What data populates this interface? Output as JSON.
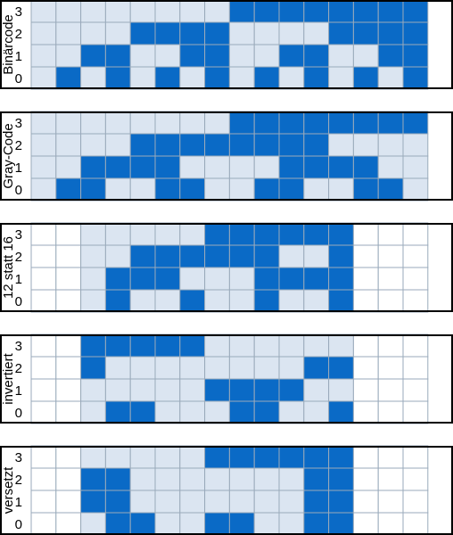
{
  "colors": {
    "on": "#0a6ac6",
    "off": "#dbe5f1",
    "empty": "#ffffff",
    "grid": "#9aaabb"
  },
  "panels": [
    {
      "title": "Binärcode",
      "row_labels": [
        "3",
        "2",
        "1",
        "0"
      ],
      "cells": [
        "1111111100000000",
        "1111000011110000",
        "1100110011001100",
        "1010101010101010"
      ]
    },
    {
      "title": "Gray-Code",
      "row_labels": [
        "3",
        "2",
        "1",
        "0"
      ],
      "cells": [
        "1111111100000000",
        "1111000000001111",
        "1100001111000011",
        "1001100110011001"
      ]
    },
    {
      "title": "12 statt 16",
      "row_labels": [
        "3",
        "2",
        "1",
        "0"
      ],
      "cells": [
        "EEE111110000EEEE",
        "EEE1000000111EEEE",
        "EEE00111100111EEE",
        "EEE011001100111EE"
      ]
    },
    {
      "title": "invertiert",
      "row_labels": [
        "3",
        "2",
        "1",
        "0"
      ],
      "cells": [
        "EEE0000011111EEE",
        "EEE001111110011EEE",
        "EEE111100001111EEE",
        "EEE101001110010EEE"
      ]
    },
    {
      "title": "versetzt",
      "row_labels": [
        "3",
        "2",
        "1",
        "0"
      ],
      "cells": [
        "EEE111111000000EEE",
        "EEE001111111100EEE",
        "EEE001111111100EEE",
        "EEE100110011000EEE"
      ]
    }
  ]
}
